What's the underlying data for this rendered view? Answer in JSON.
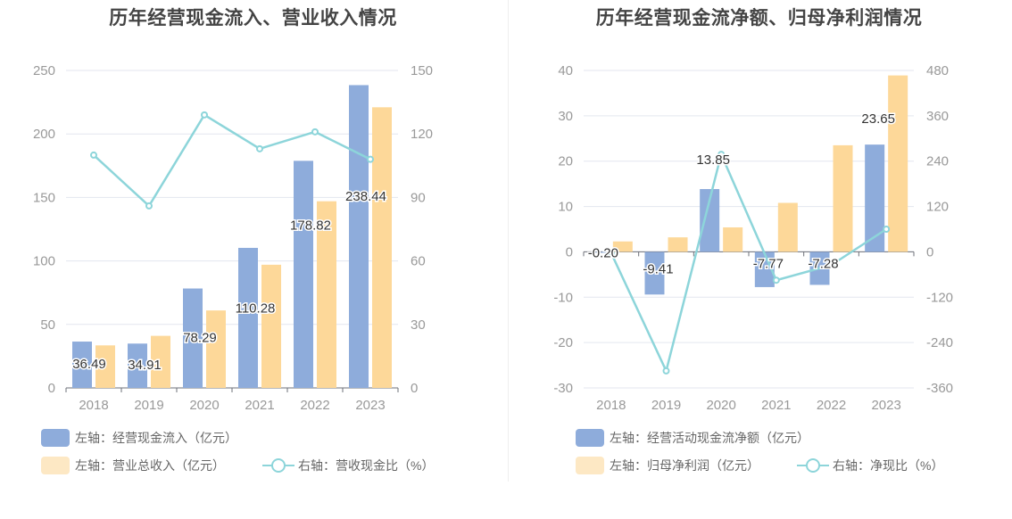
{
  "colors": {
    "bar1": "#8eacdb",
    "bar2": "#fdd899",
    "line": "#8dd5da",
    "grid": "#e3e6ef",
    "axis": "#999999",
    "label": "#333333"
  },
  "chart_data": [
    {
      "type": "bar",
      "title": "历年经营现金流入、营业收入情况",
      "categories": [
        "2018",
        "2019",
        "2020",
        "2021",
        "2022",
        "2023"
      ],
      "y_left": {
        "min": 0,
        "max": 250,
        "ticks": [
          "0",
          "50",
          "100",
          "150",
          "200",
          "250"
        ]
      },
      "y_right": {
        "min": 0,
        "max": 150,
        "ticks": [
          "0",
          "30",
          "60",
          "90",
          "120",
          "150"
        ]
      },
      "series": [
        {
          "name": "左轴：经营现金流入（亿元）",
          "type": "bar",
          "axis": "left",
          "values": [
            36.49,
            34.91,
            78.29,
            110.28,
            178.82,
            238.44
          ],
          "labels": [
            "36.49",
            "34.91",
            "78.29",
            "110.28",
            "178.82",
            "238.44"
          ]
        },
        {
          "name": "左轴：营业总收入（亿元）",
          "type": "bar",
          "axis": "left",
          "values": [
            33.5,
            41,
            61,
            97,
            147,
            221
          ]
        },
        {
          "name": "右轴：营收现金比（%）",
          "type": "line",
          "axis": "right",
          "values": [
            110,
            86,
            129,
            113,
            121,
            108
          ]
        }
      ]
    },
    {
      "type": "bar",
      "title": "历年经营现金流净额、归母净利润情况",
      "categories": [
        "2018",
        "2019",
        "2020",
        "2021",
        "2022",
        "2023"
      ],
      "y_left": {
        "min": -30,
        "max": 40,
        "ticks": [
          "-30",
          "-20",
          "-10",
          "0",
          "10",
          "20",
          "30",
          "40"
        ]
      },
      "y_right": {
        "min": -360,
        "max": 480,
        "ticks": [
          "-360",
          "-240",
          "-120",
          "0",
          "120",
          "240",
          "360",
          "480"
        ]
      },
      "series": [
        {
          "name": "左轴：经营活动现金流净额（亿元）",
          "type": "bar",
          "axis": "left",
          "values": [
            -0.2,
            -9.41,
            13.85,
            -7.77,
            -7.28,
            23.65
          ],
          "labels": [
            "-0.20",
            "-9.41",
            "13.85",
            "-7.77",
            "-7.28",
            "23.65"
          ]
        },
        {
          "name": "左轴：归母净利润（亿元）",
          "type": "bar",
          "axis": "left",
          "values": [
            2.3,
            3.2,
            5.4,
            10.8,
            23.5,
            38.9
          ]
        },
        {
          "name": "右轴：净现比（%）",
          "type": "line",
          "axis": "right",
          "values": [
            -3,
            -315,
            258,
            -75,
            -35,
            60
          ]
        }
      ]
    }
  ]
}
